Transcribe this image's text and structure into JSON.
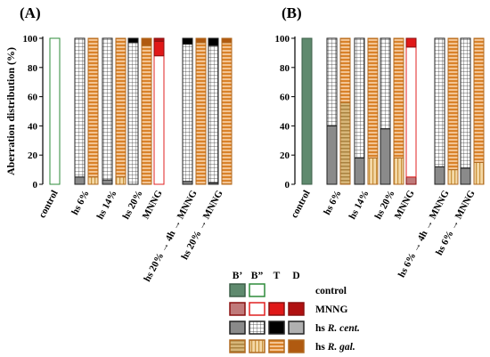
{
  "chart_data": [
    {
      "panel": "(A)",
      "type": "bar",
      "ylabel": "Aberration distribution (%)",
      "ylim": [
        0,
        100
      ],
      "yticks": [
        0,
        20,
        40,
        60,
        80,
        100
      ],
      "groups": [
        {
          "label": "control",
          "bars": [
            {
              "kind": "control",
              "B1": 0,
              "B2": 100,
              "T": 0,
              "D": 0
            }
          ]
        },
        {
          "label": "hs 6%",
          "bars": [
            {
              "kind": "cent",
              "B1": 5,
              "B2": 95,
              "T": 0,
              "D": 0
            },
            {
              "kind": "gal",
              "B1": 0,
              "B2": 5,
              "T": 95,
              "D": 0
            }
          ]
        },
        {
          "label": "hs 14%",
          "bars": [
            {
              "kind": "cent",
              "B1": 3,
              "B2": 97,
              "T": 0,
              "D": 0
            },
            {
              "kind": "gal",
              "B1": 0,
              "B2": 5,
              "T": 95,
              "D": 0
            }
          ]
        },
        {
          "label": "hs 20%",
          "bars": [
            {
              "kind": "cent",
              "B1": 0,
              "B2": 97,
              "T": 3,
              "D": 0
            },
            {
              "kind": "gal",
              "B1": 0,
              "B2": 0,
              "T": 95,
              "D": 5
            }
          ]
        },
        {
          "label": "MNNG",
          "bars": [
            {
              "kind": "mnng",
              "B1": 0,
              "B2": 88,
              "T": 10,
              "D": 2
            }
          ]
        },
        {
          "label": "hs 20% → 4h → MNNG",
          "bars": [
            {
              "kind": "cent",
              "B1": 2,
              "B2": 94,
              "T": 4,
              "D": 0
            },
            {
              "kind": "gal",
              "B1": 0,
              "B2": 0,
              "T": 97,
              "D": 3
            }
          ]
        },
        {
          "label": "hs 20% → MNNG",
          "bars": [
            {
              "kind": "cent",
              "B1": 1,
              "B2": 94,
              "T": 5,
              "D": 0
            },
            {
              "kind": "gal",
              "B1": 0,
              "B2": 0,
              "T": 97,
              "D": 3
            }
          ]
        }
      ]
    },
    {
      "panel": "(B)",
      "type": "bar",
      "ylabel": "",
      "ylim": [
        0,
        100
      ],
      "yticks": [
        0,
        20,
        40,
        60,
        80,
        100
      ],
      "groups": [
        {
          "label": "control",
          "bars": [
            {
              "kind": "control",
              "B1": 100,
              "B2": 0,
              "T": 0,
              "D": 0
            }
          ]
        },
        {
          "label": "hs 6%",
          "bars": [
            {
              "kind": "cent",
              "B1": 40,
              "B2": 60,
              "T": 0,
              "D": 0
            },
            {
              "kind": "gal",
              "B1": 56,
              "B2": 0,
              "T": 44,
              "D": 0
            }
          ]
        },
        {
          "label": "hs 14%",
          "bars": [
            {
              "kind": "cent",
              "B1": 18,
              "B2": 82,
              "T": 0,
              "D": 0
            },
            {
              "kind": "gal",
              "B1": 0,
              "B2": 18,
              "T": 82,
              "D": 0
            }
          ]
        },
        {
          "label": "hs 20%",
          "bars": [
            {
              "kind": "cent",
              "B1": 38,
              "B2": 62,
              "T": 0,
              "D": 0
            },
            {
              "kind": "gal",
              "B1": 0,
              "B2": 18,
              "T": 82,
              "D": 0
            }
          ]
        },
        {
          "label": "MNNG",
          "bars": [
            {
              "kind": "mnng",
              "B1": 5,
              "B2": 89,
              "T": 6,
              "D": 0
            }
          ]
        },
        {
          "label": "hs 6% → 4h → MNNG",
          "bars": [
            {
              "kind": "cent",
              "B1": 12,
              "B2": 88,
              "T": 0,
              "D": 0
            },
            {
              "kind": "gal",
              "B1": 0,
              "B2": 10,
              "T": 90,
              "D": 0
            }
          ]
        },
        {
          "label": "hs 6% → MNNG",
          "bars": [
            {
              "kind": "cent",
              "B1": 11,
              "B2": 89,
              "T": 0,
              "D": 0
            },
            {
              "kind": "gal",
              "B1": 0,
              "B2": 15,
              "T": 85,
              "D": 0
            }
          ]
        }
      ]
    }
  ],
  "legend": {
    "columns": [
      "B’",
      "B”",
      "T",
      "D"
    ],
    "rows": [
      {
        "label": "control",
        "italic": ""
      },
      {
        "label": "MNNG",
        "italic": ""
      },
      {
        "label": "hs ",
        "italic": "R. cent."
      },
      {
        "label": "hs ",
        "italic": "R. gal."
      }
    ]
  },
  "colors": {
    "control_B1": "#5f8a6e",
    "control_B2": "#2e8b3a",
    "mnng_B2": "#e02020",
    "mnng_T": "#e01818",
    "mnng_D": "#b01010",
    "cent_B1": "#8a8a8a",
    "cent_T": "#000000",
    "cent_D": "#b0b0b0",
    "gal_B1": "#b8955a",
    "gal_T": "#e0842a",
    "gal_D": "#b05a10"
  }
}
